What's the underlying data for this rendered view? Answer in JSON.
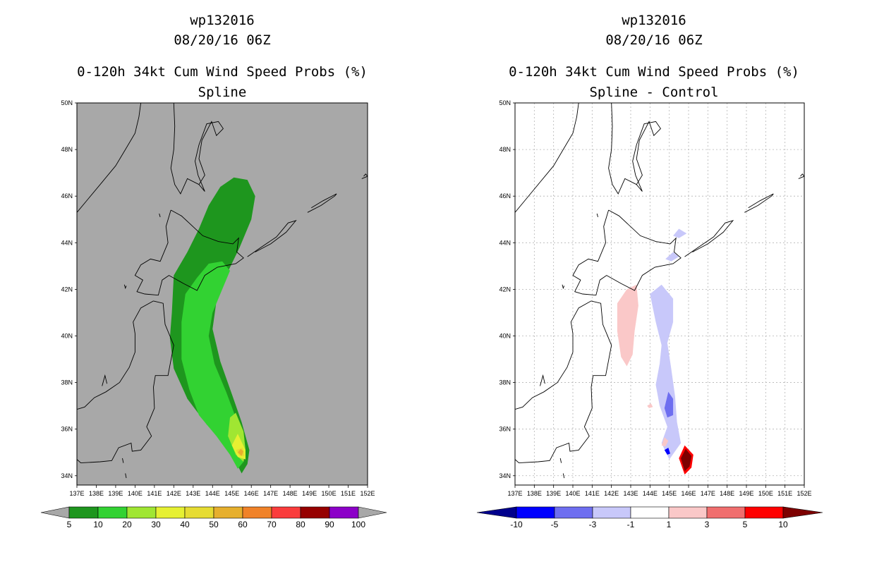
{
  "panels": [
    {
      "storm_id": "wp132016",
      "datetime": "08/20/16 06Z",
      "product": "0-120h 34kt Cum Wind Speed Probs (%)",
      "subtitle": "Spline",
      "background_color": "#a8a8a8",
      "gridlines": false
    },
    {
      "storm_id": "wp132016",
      "datetime": "08/20/16 06Z",
      "product": "0-120h 34kt Cum Wind Speed Probs (%)",
      "subtitle": "Spline - Control",
      "background_color": "#ffffff",
      "gridlines": true
    }
  ],
  "map_extent": {
    "lon": [
      137,
      152
    ],
    "lat": [
      33.6,
      50
    ]
  },
  "lon_ticks": [
    "137E",
    "138E",
    "139E",
    "140E",
    "141E",
    "142E",
    "143E",
    "144E",
    "145E",
    "146E",
    "147E",
    "148E",
    "149E",
    "150E",
    "151E",
    "152E"
  ],
  "lat_ticks": [
    "34N",
    "36N",
    "38N",
    "40N",
    "42N",
    "44N",
    "46N",
    "48N",
    "50N"
  ],
  "colorbars": [
    {
      "labels": [
        "5",
        "10",
        "20",
        "30",
        "40",
        "50",
        "60",
        "70",
        "80",
        "90",
        "100"
      ],
      "colors": [
        "#1e961e",
        "#32d232",
        "#a0e632",
        "#e6f032",
        "#e6dc32",
        "#e6af2d",
        "#f08228",
        "#fa3c3c",
        "#960000",
        "#8c00c8"
      ],
      "end_color": "#a8a8a8"
    },
    {
      "labels": [
        "-10",
        "-5",
        "-3",
        "-1",
        "1",
        "3",
        "5",
        "10"
      ],
      "colors": [
        "#0000ff",
        "#6e6ef0",
        "#c8c8fa",
        "#ffffff",
        "#fac8c8",
        "#f06e6e",
        "#ff0000"
      ],
      "low_end_color": "#00008c",
      "high_end_color": "#7d0000"
    }
  ],
  "chart_data": [
    {
      "type": "contour-map",
      "title": "0-120h 34kt Cum Wind Speed Probs (%) Spline",
      "levels": [
        5,
        10,
        20,
        30,
        40,
        50,
        60,
        70,
        80,
        90,
        100
      ],
      "features": [
        {
          "level": 5,
          "color": "#1e961e",
          "points": [
            [
              141.9,
              41
            ],
            [
              142,
              42.6
            ],
            [
              142.7,
              43.6
            ],
            [
              143.3,
              44.6
            ],
            [
              143.8,
              45.6
            ],
            [
              144.4,
              46.4
            ],
            [
              145.1,
              46.8
            ],
            [
              145.8,
              46.7
            ],
            [
              146.2,
              46
            ],
            [
              146,
              45
            ],
            [
              145.4,
              43.8
            ],
            [
              144.7,
              42.6
            ],
            [
              144.2,
              41.5
            ],
            [
              144,
              40.3
            ],
            [
              144.4,
              38.9
            ],
            [
              145,
              37.5
            ],
            [
              145.5,
              36.3
            ],
            [
              145.9,
              35.1
            ],
            [
              145.8,
              34.5
            ],
            [
              145.5,
              34.1
            ],
            [
              145.2,
              34.6
            ],
            [
              144.7,
              35.3
            ],
            [
              143.7,
              36.2
            ],
            [
              142.7,
              37.3
            ],
            [
              142,
              38.6
            ],
            [
              141.8,
              39.9
            ]
          ]
        },
        {
          "level": 10,
          "color": "#32d232",
          "points": [
            [
              142.4,
              40.6
            ],
            [
              142.6,
              41.8
            ],
            [
              143.2,
              42.5
            ],
            [
              143.8,
              43.1
            ],
            [
              144.5,
              43.2
            ],
            [
              144.9,
              42.8
            ],
            [
              144.5,
              42
            ],
            [
              144,
              41
            ],
            [
              143.8,
              40
            ],
            [
              144.1,
              38.8
            ],
            [
              144.7,
              37.6
            ],
            [
              145.2,
              36.5
            ],
            [
              145.6,
              35.3
            ],
            [
              145.6,
              34.6
            ],
            [
              145.3,
              34.3
            ],
            [
              144.9,
              34.9
            ],
            [
              144.2,
              35.7
            ],
            [
              143.3,
              36.6
            ],
            [
              142.8,
              37.7
            ],
            [
              142.4,
              39
            ]
          ]
        },
        {
          "level": 20,
          "color": "#a0e632",
          "points": [
            [
              144.9,
              36.5
            ],
            [
              144.8,
              35.7
            ],
            [
              145.2,
              34.9
            ],
            [
              145.6,
              34.6
            ],
            [
              145.7,
              35.1
            ],
            [
              145.6,
              35.9
            ],
            [
              145.2,
              36.7
            ]
          ]
        },
        {
          "level": 30,
          "color": "#e6f032",
          "points": [
            [
              145,
              35.3
            ],
            [
              145.3,
              34.8
            ],
            [
              145.7,
              34.7
            ],
            [
              145.7,
              35.1
            ],
            [
              145.3,
              35.8
            ]
          ]
        },
        {
          "level": 40,
          "color": "#e6dc32",
          "points": [
            [
              145.2,
              35.1
            ],
            [
              145.4,
              34.85
            ],
            [
              145.65,
              34.85
            ],
            [
              145.55,
              35.2
            ]
          ]
        },
        {
          "level": 50,
          "color": "#e6af2d",
          "points": [
            [
              145.3,
              35
            ],
            [
              145.5,
              34.85
            ],
            [
              145.6,
              35.05
            ],
            [
              145.45,
              35.15
            ]
          ]
        }
      ]
    },
    {
      "type": "contour-map",
      "title": "0-120h 34kt Cum Wind Speed Probs (%) Spline - Control",
      "levels": [
        -10,
        -5,
        -3,
        -1,
        1,
        3,
        5,
        10
      ],
      "features": [
        {
          "level": 1,
          "color": "#fac8c8",
          "points": [
            [
              142.3,
              41.4
            ],
            [
              142.8,
              42
            ],
            [
              143.3,
              42.2
            ],
            [
              143.4,
              41.3
            ],
            [
              143.2,
              40.2
            ],
            [
              143.1,
              39.2
            ],
            [
              142.8,
              38.7
            ],
            [
              142.5,
              39.1
            ],
            [
              142.3,
              40.2
            ]
          ]
        },
        {
          "level": -1,
          "color": "#c8c8fa",
          "points": [
            [
              144,
              41.8
            ],
            [
              144.6,
              42.2
            ],
            [
              145.2,
              41.6
            ],
            [
              145.2,
              40.6
            ],
            [
              144.9,
              39.7
            ],
            [
              145.1,
              38.6
            ],
            [
              145.3,
              37.4
            ],
            [
              145.4,
              36.3
            ],
            [
              145.6,
              35.4
            ],
            [
              145,
              34.7
            ],
            [
              144.6,
              35.4
            ],
            [
              144.9,
              36.1
            ],
            [
              144.5,
              37
            ],
            [
              144.3,
              37.9
            ],
            [
              144.5,
              38.8
            ],
            [
              144.6,
              39.6
            ],
            [
              144.3,
              40.6
            ]
          ]
        },
        {
          "level": -3,
          "color": "#6e6ef0",
          "points": [
            [
              144.75,
              36.9
            ],
            [
              144.95,
              37.6
            ],
            [
              145.2,
              37.3
            ],
            [
              145.2,
              36.6
            ],
            [
              144.9,
              36.5
            ]
          ]
        },
        {
          "level": -5,
          "color": "#0000ff",
          "points": [
            [
              144.75,
              35.1
            ],
            [
              144.95,
              35.2
            ],
            [
              145.05,
              34.95
            ],
            [
              144.9,
              34.9
            ]
          ]
        },
        {
          "level": -1,
          "color": "#c8c8fa",
          "points": [
            [
              145.2,
              44.3
            ],
            [
              145.5,
              44.6
            ],
            [
              145.9,
              44.4
            ],
            [
              145.5,
              44.2
            ]
          ]
        },
        {
          "level": -1,
          "color": "#c8c8fa",
          "points": [
            [
              144.8,
              43.3
            ],
            [
              145.2,
              43.6
            ],
            [
              145.5,
              43.4
            ],
            [
              145.1,
              43.2
            ]
          ]
        },
        {
          "level": 1,
          "color": "#fac8c8",
          "points": [
            [
              143.85,
              37
            ],
            [
              144.05,
              37.1
            ],
            [
              144.15,
              36.95
            ],
            [
              143.95,
              36.9
            ]
          ]
        },
        {
          "level": 1,
          "color": "#fac8c8",
          "points": [
            [
              144.6,
              35.3
            ],
            [
              144.75,
              35.65
            ],
            [
              144.95,
              35.5
            ],
            [
              144.8,
              35.25
            ]
          ]
        },
        {
          "level": 5,
          "color": "#ff0000",
          "points": [
            [
              145.5,
              34.75
            ],
            [
              145.8,
              35.3
            ],
            [
              146.25,
              34.9
            ],
            [
              146.15,
              34.35
            ],
            [
              145.8,
              34.05
            ]
          ]
        },
        {
          "level": 10,
          "color": "#7d0000",
          "points": [
            [
              145.6,
              34.75
            ],
            [
              145.85,
              35.15
            ],
            [
              146.15,
              34.85
            ],
            [
              146.05,
              34.4
            ],
            [
              145.8,
              34.2
            ]
          ]
        }
      ]
    }
  ],
  "coastlines": [
    [
      [
        137,
        45.3
      ],
      [
        137.6,
        45.9
      ],
      [
        138.3,
        46.6
      ],
      [
        139,
        47.3
      ],
      [
        139.5,
        48
      ],
      [
        140,
        48.7
      ],
      [
        140.2,
        49.4
      ],
      [
        140.3,
        50
      ]
    ],
    [
      [
        142,
        50
      ],
      [
        142.05,
        49
      ],
      [
        142,
        48
      ],
      [
        141.85,
        47.2
      ],
      [
        142.05,
        46.5
      ],
      [
        142.35,
        46.1
      ],
      [
        142.7,
        46.75
      ],
      [
        143.3,
        46.5
      ],
      [
        143.6,
        46.2
      ],
      [
        143.25,
        46.9
      ],
      [
        143.1,
        47.5
      ],
      [
        143.3,
        48.2
      ],
      [
        143.7,
        49.1
      ],
      [
        144.3,
        49.2
      ],
      [
        144.55,
        48.9
      ],
      [
        144.2,
        48.6
      ],
      [
        143.95,
        49.2
      ],
      [
        143.45,
        48.4
      ],
      [
        143.3,
        47.6
      ],
      [
        143.6,
        46.9
      ],
      [
        143.3,
        46.5
      ],
      [
        142.7,
        46.75
      ]
    ],
    [
      [
        141.85,
        45.4
      ],
      [
        141.6,
        44.7
      ],
      [
        141.7,
        44
      ],
      [
        141.3,
        43.2
      ],
      [
        140.8,
        43.3
      ],
      [
        140.3,
        43.05
      ],
      [
        140,
        42.6
      ],
      [
        140.4,
        42.4
      ],
      [
        140.1,
        41.9
      ],
      [
        140.5,
        41.8
      ],
      [
        141.2,
        41.75
      ],
      [
        141.4,
        42.4
      ],
      [
        141.75,
        42.6
      ],
      [
        142.5,
        42.25
      ],
      [
        143.2,
        41.95
      ],
      [
        143.6,
        42.6
      ],
      [
        144.25,
        42.95
      ],
      [
        145.2,
        43.1
      ],
      [
        145.6,
        43.35
      ],
      [
        145.25,
        43.6
      ],
      [
        145.35,
        44.2
      ],
      [
        145.05,
        43.95
      ],
      [
        144.3,
        44.05
      ],
      [
        143.5,
        44.3
      ],
      [
        142.4,
        45.15
      ],
      [
        141.85,
        45.4
      ]
    ],
    [
      [
        140.95,
        41.5
      ],
      [
        141.45,
        41.4
      ],
      [
        141.55,
        40.5
      ],
      [
        142,
        39.6
      ],
      [
        141.7,
        38.3
      ],
      [
        141.05,
        38.3
      ],
      [
        140.95,
        37.8
      ],
      [
        141,
        36.9
      ],
      [
        140.6,
        36.1
      ],
      [
        140.85,
        35.7
      ],
      [
        140.3,
        35.1
      ],
      [
        139.85,
        35.05
      ],
      [
        139.8,
        35.4
      ],
      [
        139.15,
        35.2
      ],
      [
        138.8,
        34.65
      ],
      [
        138.2,
        34.6
      ],
      [
        137.2,
        34.55
      ],
      [
        137,
        34.7
      ]
    ],
    [
      [
        137,
        36.85
      ],
      [
        137.4,
        36.95
      ],
      [
        137.9,
        37.35
      ],
      [
        138.5,
        37.6
      ],
      [
        139.2,
        38
      ],
      [
        139.7,
        38.65
      ],
      [
        140,
        39.3
      ],
      [
        140,
        40.1
      ],
      [
        139.9,
        40.6
      ],
      [
        140.3,
        41.2
      ],
      [
        140.95,
        41.5
      ]
    ],
    [
      [
        145.8,
        43.4
      ],
      [
        146.5,
        43.8
      ],
      [
        147.3,
        44.25
      ],
      [
        147.9,
        44.85
      ],
      [
        148.3,
        44.95
      ],
      [
        147.8,
        44.45
      ],
      [
        147,
        43.95
      ],
      [
        146.2,
        43.6
      ]
    ],
    [
      [
        148.9,
        45.3
      ],
      [
        149.6,
        45.6
      ],
      [
        150.3,
        46
      ],
      [
        150.4,
        46.1
      ],
      [
        149.7,
        45.8
      ],
      [
        149.1,
        45.5
      ]
    ],
    [
      [
        151.7,
        46.75
      ],
      [
        152,
        46.85
      ],
      [
        151.9,
        46.95
      ],
      [
        151.8,
        46.85
      ]
    ],
    [
      [
        138.3,
        37.85
      ],
      [
        138.45,
        38.3
      ],
      [
        138.55,
        37.95
      ]
    ],
    [
      [
        139.45,
        42.2
      ],
      [
        139.5,
        42.05
      ],
      [
        139.55,
        42.15
      ]
    ],
    [
      [
        141.25,
        45.25
      ],
      [
        141.3,
        45.1
      ]
    ],
    [
      [
        139.35,
        34.75
      ],
      [
        139.4,
        34.55
      ]
    ],
    [
      [
        139.5,
        34.1
      ],
      [
        139.55,
        33.9
      ]
    ]
  ]
}
